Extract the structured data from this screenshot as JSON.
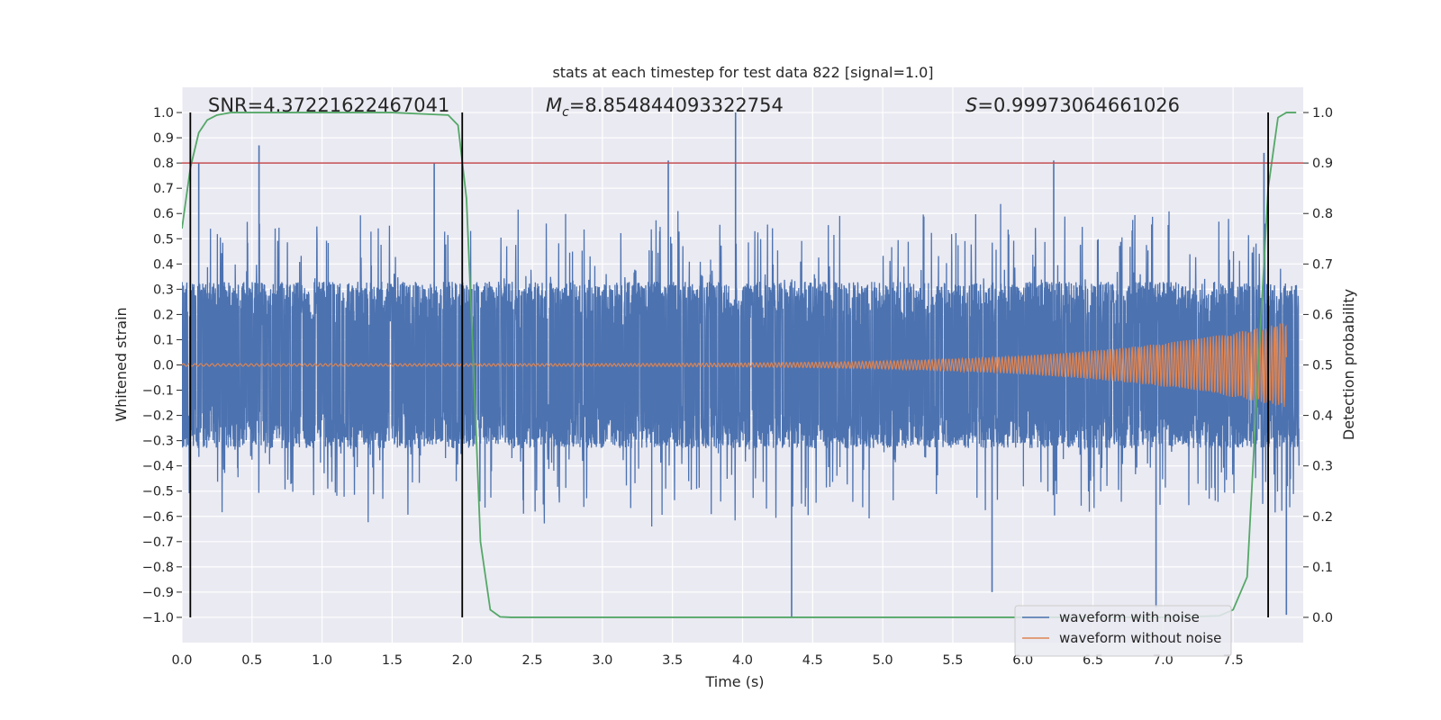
{
  "chart_data": {
    "type": "line",
    "title": "stats at each timestep for test data 822 [signal=1.0]",
    "xlabel": "Time (s)",
    "ylabel": "Whitened strain",
    "ylabel_right": "Detection probability",
    "xlim": [
      0.0,
      8.0
    ],
    "ylim": [
      -1.1,
      1.1
    ],
    "ylim_right": [
      -0.05,
      1.05
    ],
    "xticks": [
      "0.0",
      "0.5",
      "1.0",
      "1.5",
      "2.0",
      "2.5",
      "3.0",
      "3.5",
      "4.0",
      "4.5",
      "5.0",
      "5.5",
      "6.0",
      "6.5",
      "7.0",
      "7.5"
    ],
    "yticks": [
      "1.0",
      "0.9",
      "0.8",
      "0.7",
      "0.6",
      "0.5",
      "0.4",
      "0.3",
      "0.2",
      "0.1",
      "0.0",
      "−0.1",
      "−0.2",
      "−0.3",
      "−0.4",
      "−0.5",
      "−0.6",
      "−0.7",
      "−0.8",
      "−0.9",
      "−1.0"
    ],
    "yticks_right": [
      "1.0",
      "0.9",
      "0.8",
      "0.7",
      "0.6",
      "0.5",
      "0.4",
      "0.3",
      "0.2",
      "0.1",
      "0.0"
    ],
    "annotations": {
      "snr": "SNR=4.37221622467041",
      "mc_prefix": "M",
      "mc_sub": "c",
      "mc_value": "=8.854844093322754",
      "s_prefix": "S",
      "s_value": "=0.99973064661026"
    },
    "threshold": {
      "value": 0.8,
      "color": "#c44e52"
    },
    "vertical_lines": [
      0.06,
      2.0,
      7.75
    ],
    "series": [
      {
        "name": "waveform with noise",
        "color": "#4c72b0",
        "typical_amplitude": 0.33,
        "peak_max": 1.0,
        "peak_min": -1.0
      },
      {
        "name": "waveform without noise",
        "color": "#dd8452",
        "amplitude_start": 0.005,
        "amplitude_end": 0.17,
        "end_time": 7.88
      },
      {
        "name": "detection probability",
        "color": "#55a868",
        "axis": "right",
        "x": [
          0.0,
          0.06,
          0.12,
          0.18,
          0.25,
          0.35,
          0.5,
          1.0,
          1.5,
          1.9,
          1.97,
          2.03,
          2.08,
          2.13,
          2.2,
          2.27,
          2.35,
          3.0,
          5.0,
          7.0,
          7.4,
          7.5,
          7.6,
          7.68,
          7.75,
          7.82,
          7.88,
          7.95
        ],
        "values": [
          0.77,
          0.89,
          0.96,
          0.985,
          0.995,
          1.0,
          1.0,
          1.0,
          1.0,
          0.995,
          0.975,
          0.83,
          0.5,
          0.15,
          0.015,
          0.001,
          0.0,
          0.0,
          0.0,
          0.0,
          0.003,
          0.015,
          0.08,
          0.5,
          0.85,
          0.99,
          1.0,
          1.0
        ]
      }
    ],
    "legend": {
      "location": "lower-right",
      "entries": [
        "waveform with noise",
        "waveform without noise"
      ]
    },
    "grid": true
  }
}
